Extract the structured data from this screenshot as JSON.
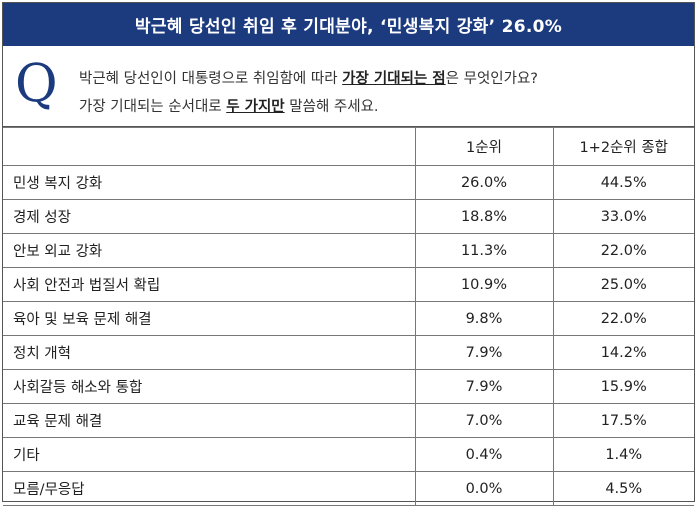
{
  "title": "박근혜 당선인 취임 후 기대분야, ‘민생복지 강화’ 26.0%",
  "question": {
    "letter": "Q",
    "line1_a": "박근혜 당선인이 대통령으로 취임함에 따라 ",
    "line1_b": "가장 기대되는 점",
    "line1_c": "은 무엇인가요?",
    "line2_a": "가장 기대되는 순서대로 ",
    "line2_b": "두 가지만",
    "line2_c": " 말씀해 주세요."
  },
  "chart_data": {
    "type": "table",
    "columns": [
      "",
      "1순위",
      "1+2순위 종합"
    ],
    "rows": [
      {
        "label": "민생 복지 강화",
        "first": "26.0%",
        "combined": "44.5%"
      },
      {
        "label": "경제 성장",
        "first": "18.8%",
        "combined": "33.0%"
      },
      {
        "label": "안보 외교 강화",
        "first": "11.3%",
        "combined": "22.0%"
      },
      {
        "label": "사회 안전과 법질서 확립",
        "first": "10.9%",
        "combined": "25.0%"
      },
      {
        "label": "육아 및 보육 문제 해결",
        "first": "9.8%",
        "combined": "22.0%"
      },
      {
        "label": "정치 개혁",
        "first": "7.9%",
        "combined": "14.2%"
      },
      {
        "label": "사회갈등 해소와 통합",
        "first": "7.9%",
        "combined": "15.9%"
      },
      {
        "label": "교육 문제 해결",
        "first": "7.0%",
        "combined": "17.5%"
      },
      {
        "label": "기타",
        "first": "0.4%",
        "combined": "1.4%"
      },
      {
        "label": "모름/무응답",
        "first": "0.0%",
        "combined": "4.5%"
      }
    ]
  },
  "colors": {
    "header_bg": "#1c3a7e",
    "q_letter": "#1c3a7e"
  }
}
